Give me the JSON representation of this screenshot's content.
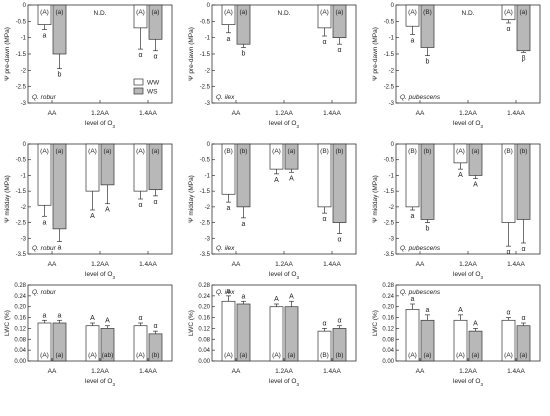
{
  "colors": {
    "ww": "#ffffff",
    "ws": "#b8b8b8",
    "stroke": "#333333",
    "error": "#333333"
  },
  "legend": {
    "ww": "WW",
    "ws": "WS"
  },
  "chart_data": [
    {
      "type": "bar",
      "species": "Q. robur",
      "ylabel": "Ψ pre-dawn (MPa)",
      "xlabel": "level of O3",
      "categories": [
        "AA",
        "1.2AA",
        "1.4AA"
      ],
      "ylim": [
        -3.0,
        0.0
      ],
      "yticks": [
        0,
        -0.5,
        -1,
        -1.5,
        -2,
        -2.5,
        -3
      ],
      "ytick_labels": [
        "0",
        "-0.5",
        "-1",
        "-1.5",
        "-2",
        "-2.5",
        "-3"
      ],
      "series": [
        {
          "name": "WW",
          "values": [
            -0.6,
            null,
            -0.7
          ],
          "errors": [
            0.15,
            null,
            0.65
          ],
          "labels": [
            "a",
            null,
            "α"
          ]
        },
        {
          "name": "WS",
          "values": [
            -1.5,
            null,
            -1.05
          ],
          "errors": [
            0.45,
            null,
            0.35
          ],
          "labels": [
            "b",
            null,
            "α"
          ]
        }
      ],
      "top_labels": [
        [
          "(A)",
          "(a)"
        ],
        null,
        [
          "(A)",
          "(a)"
        ]
      ],
      "center_text": "N.D.",
      "show_legend": true
    },
    {
      "type": "bar",
      "species": "Q. ilex",
      "ylabel": "Ψ pre-dawn (MPa)",
      "xlabel": "level of O3",
      "categories": [
        "AA",
        "1.2AA",
        "1.4AA"
      ],
      "ylim": [
        -3.0,
        0.0
      ],
      "yticks": [
        0,
        -0.5,
        -1,
        -1.5,
        -2,
        -2.5,
        -3
      ],
      "ytick_labels": [
        "0",
        "-0.5",
        "-1",
        "-1.5",
        "-2",
        "-2.5",
        "-3"
      ],
      "series": [
        {
          "name": "WW",
          "values": [
            -0.6,
            null,
            -0.7
          ],
          "errors": [
            0.25,
            null,
            0.25
          ],
          "labels": [
            "a",
            null,
            "α"
          ]
        },
        {
          "name": "WS",
          "values": [
            -1.2,
            null,
            -1.0
          ],
          "errors": [
            0.1,
            null,
            0.2
          ],
          "labels": [
            "b",
            null,
            "α"
          ]
        }
      ],
      "top_labels": [
        [
          "(A)",
          "(a)"
        ],
        null,
        [
          "(A)",
          "(a)"
        ]
      ],
      "center_text": "N.D."
    },
    {
      "type": "bar",
      "species": "Q. pubescens",
      "ylabel": "Ψ pre-dawn (MPa)",
      "xlabel": "level of O3",
      "categories": [
        "AA",
        "1.2AA",
        "1.4AA"
      ],
      "ylim": [
        -3.0,
        0.0
      ],
      "yticks": [
        0,
        -0.5,
        -1,
        -1.5,
        -2,
        -2.5,
        -3
      ],
      "ytick_labels": [
        "0",
        "-0.5",
        "-1",
        "-1.5",
        "-2",
        "-2.5",
        "-3"
      ],
      "series": [
        {
          "name": "WW",
          "values": [
            -0.65,
            null,
            -0.45
          ],
          "errors": [
            0.25,
            null,
            0.1
          ],
          "labels": [
            "a",
            null,
            "α"
          ]
        },
        {
          "name": "WS",
          "values": [
            -1.3,
            null,
            -1.4
          ],
          "errors": [
            0.25,
            null,
            0.05
          ],
          "labels": [
            "b",
            null,
            "β"
          ]
        }
      ],
      "top_labels": [
        [
          "(A)",
          "(B)"
        ],
        null,
        [
          "(A)",
          "(a)"
        ]
      ],
      "center_text": "N.D."
    },
    {
      "type": "bar",
      "species": "Q. robur",
      "ylabel": "Ψ midday (MPa)",
      "xlabel": "level of O3",
      "categories": [
        "AA",
        "1.2AA",
        "1.4AA"
      ],
      "ylim": [
        -3.5,
        0.0
      ],
      "yticks": [
        0,
        -0.5,
        -1,
        -1.5,
        -2,
        -2.5,
        -3,
        -3.5
      ],
      "ytick_labels": [
        "0",
        "-0.5",
        "-1",
        "-1.5",
        "-2",
        "-2.5",
        "-3",
        "-3.5"
      ],
      "series": [
        {
          "name": "WW",
          "values": [
            -1.95,
            -1.5,
            -1.5
          ],
          "errors": [
            0.35,
            0.6,
            0.25
          ],
          "labels": [
            "a",
            "A",
            "α"
          ]
        },
        {
          "name": "WS",
          "values": [
            -2.7,
            -1.3,
            -1.45
          ],
          "errors": [
            0.4,
            0.6,
            0.2
          ],
          "labels": [
            "a",
            "A",
            "α"
          ]
        }
      ],
      "top_labels": [
        [
          "(A)",
          "(a)"
        ],
        [
          "(A)",
          "(a)"
        ],
        [
          "(A)",
          "(a)"
        ]
      ]
    },
    {
      "type": "bar",
      "species": "Q. ilex",
      "ylabel": "Ψ midday (MPa)",
      "xlabel": "level of O3",
      "categories": [
        "AA",
        "1.2AA",
        "1.4AA"
      ],
      "ylim": [
        -3.5,
        0.0
      ],
      "yticks": [
        0,
        -0.5,
        -1,
        -1.5,
        -2,
        -2.5,
        -3,
        -3.5
      ],
      "ytick_labels": [
        "0",
        "-0.5",
        "-1",
        "-1.5",
        "-2",
        "-2.5",
        "-3",
        "-3.5"
      ],
      "series": [
        {
          "name": "WW",
          "values": [
            -1.6,
            -0.8,
            -2.0
          ],
          "errors": [
            0.25,
            0.15,
            0.2
          ],
          "labels": [
            "a",
            "A",
            "α"
          ]
        },
        {
          "name": "WS",
          "values": [
            -2.0,
            -0.8,
            -2.5
          ],
          "errors": [
            0.35,
            0.1,
            0.35
          ],
          "labels": [
            "a",
            "A",
            "α"
          ]
        }
      ],
      "top_labels": [
        [
          "(B)",
          "(b)"
        ],
        [
          "(A)",
          "(a)"
        ],
        [
          "(B)",
          "(b)"
        ]
      ]
    },
    {
      "type": "bar",
      "species": "Q. pubescens",
      "ylabel": "Ψ midday (MPa)",
      "xlabel": "level of O3",
      "categories": [
        "AA",
        "1.2AA",
        "1.4AA"
      ],
      "ylim": [
        -3.5,
        0.0
      ],
      "yticks": [
        0,
        -0.5,
        -1,
        -1.5,
        -2,
        -2.5,
        -3,
        -3.5
      ],
      "ytick_labels": [
        "0",
        "-0.5",
        "-1",
        "-1.5",
        "-2",
        "-2.5",
        "-3",
        "-3.5"
      ],
      "series": [
        {
          "name": "WW",
          "values": [
            -2.0,
            -0.6,
            -2.5
          ],
          "errors": [
            0.1,
            0.2,
            0.75
          ],
          "labels": [
            "a",
            "A",
            "α"
          ]
        },
        {
          "name": "WS",
          "values": [
            -2.4,
            -1.0,
            -2.4
          ],
          "errors": [
            0.1,
            0.1,
            0.75
          ],
          "labels": [
            "b",
            "A",
            "α"
          ]
        }
      ],
      "top_labels": [
        [
          "(B)",
          "(b)"
        ],
        [
          "(A)",
          "(a)"
        ],
        [
          "(B)",
          "(b)"
        ]
      ]
    },
    {
      "type": "bar",
      "species": "Q. robur",
      "ylabel": "LWC (%)",
      "xlabel": "level of O3",
      "categories": [
        "AA",
        "1.2AA",
        "1.4AA"
      ],
      "ylim": [
        0.0,
        0.28
      ],
      "yticks": [
        0,
        0.04,
        0.08,
        0.12,
        0.16,
        0.2,
        0.24,
        0.28
      ],
      "ytick_labels": [
        "0.00",
        "0.04",
        "0.08",
        "0.12",
        "0.16",
        "0.20",
        "0.24",
        "0.28"
      ],
      "series": [
        {
          "name": "WW",
          "values": [
            0.14,
            0.13,
            0.13
          ],
          "errors": [
            0.01,
            0.01,
            0.01
          ],
          "labels": [
            "a",
            "A",
            "α"
          ]
        },
        {
          "name": "WS",
          "values": [
            0.14,
            0.12,
            0.1
          ],
          "errors": [
            0.01,
            0.01,
            0.01
          ],
          "labels": [
            "a",
            "A",
            "α"
          ]
        }
      ],
      "bottom_labels": [
        [
          "(A)",
          "(a)"
        ],
        [
          "(A)",
          "(ab)"
        ],
        [
          "(A)",
          "(b)"
        ]
      ]
    },
    {
      "type": "bar",
      "species": "Q. ilex",
      "ylabel": "LWC (%)",
      "xlabel": "level of O3",
      "categories": [
        "AA",
        "1.2AA",
        "1.4AA"
      ],
      "ylim": [
        0.0,
        0.28
      ],
      "yticks": [
        0,
        0.04,
        0.08,
        0.12,
        0.16,
        0.2,
        0.24,
        0.28
      ],
      "ytick_labels": [
        "0.00",
        "0.04",
        "0.08",
        "0.12",
        "0.16",
        "0.20",
        "0.24",
        "0.28"
      ],
      "series": [
        {
          "name": "WW",
          "values": [
            0.22,
            0.2,
            0.11
          ],
          "errors": [
            0.02,
            0.01,
            0.01
          ],
          "labels": [
            "a",
            "A",
            "α"
          ]
        },
        {
          "name": "WS",
          "values": [
            0.21,
            0.2,
            0.12
          ],
          "errors": [
            0.01,
            0.02,
            0.01
          ],
          "labels": [
            "a",
            "A",
            "α"
          ]
        }
      ],
      "bottom_labels": [
        [
          "(A)",
          "(a)"
        ],
        [
          "(A)",
          "(a)"
        ],
        [
          "(B)",
          "(b)"
        ]
      ]
    },
    {
      "type": "bar",
      "species": "Q. pubescens",
      "ylabel": "LWC (%)",
      "xlabel": "level of O3",
      "categories": [
        "AA",
        "1.2AA",
        "1.4AA"
      ],
      "ylim": [
        0.0,
        0.28
      ],
      "yticks": [
        0,
        0.04,
        0.08,
        0.12,
        0.16,
        0.2,
        0.24,
        0.28
      ],
      "ytick_labels": [
        "0.00",
        "0.04",
        "0.08",
        "0.12",
        "0.16",
        "0.20",
        "0.24",
        "0.28"
      ],
      "series": [
        {
          "name": "WW",
          "values": [
            0.19,
            0.15,
            0.15
          ],
          "errors": [
            0.02,
            0.02,
            0.01
          ],
          "labels": [
            "a",
            "A",
            "α"
          ]
        },
        {
          "name": "WS",
          "values": [
            0.15,
            0.11,
            0.13
          ],
          "errors": [
            0.02,
            0.01,
            0.01
          ],
          "labels": [
            "a",
            "A",
            "α"
          ]
        }
      ],
      "bottom_labels": [
        [
          "(A)",
          "(a)"
        ],
        [
          "(A)",
          "(a)"
        ],
        [
          "(A)",
          "(a)"
        ]
      ]
    }
  ]
}
